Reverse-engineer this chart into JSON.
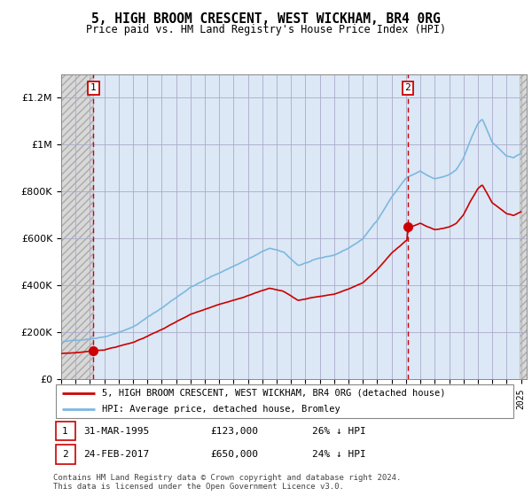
{
  "title": "5, HIGH BROOM CRESCENT, WEST WICKHAM, BR4 0RG",
  "subtitle": "Price paid vs. HM Land Registry's House Price Index (HPI)",
  "ylim": [
    0,
    1300000
  ],
  "yticks": [
    0,
    200000,
    400000,
    600000,
    800000,
    1000000,
    1200000
  ],
  "ytick_labels": [
    "£0",
    "£200K",
    "£400K",
    "£600K",
    "£800K",
    "£1M",
    "£1.2M"
  ],
  "transaction1_date": 1995.25,
  "transaction1_price": 123000,
  "transaction2_date": 2017.12,
  "transaction2_price": 650000,
  "hpi_color": "#7cb8e0",
  "price_color": "#cc0000",
  "bg_plot": "#dce8f5",
  "bg_hatch": "#d8d8d8",
  "legend_label1": "5, HIGH BROOM CRESCENT, WEST WICKHAM, BR4 0RG (detached house)",
  "legend_label2": "HPI: Average price, detached house, Bromley",
  "note1_date": "31-MAR-1995",
  "note1_price": "£123,000",
  "note1_hpi": "26% ↓ HPI",
  "note2_date": "24-FEB-2017",
  "note2_price": "£650,000",
  "note2_hpi": "24% ↓ HPI",
  "copyright": "Contains HM Land Registry data © Crown copyright and database right 2024.\nThis data is licensed under the Open Government Licence v3.0.",
  "xstart": 1993,
  "xend": 2025
}
